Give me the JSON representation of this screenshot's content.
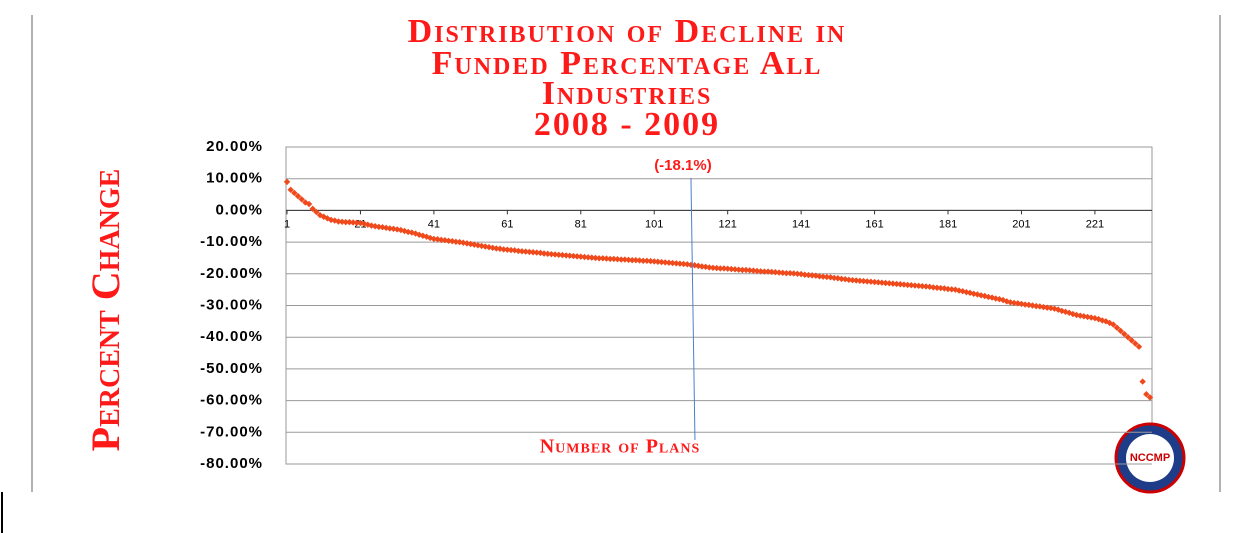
{
  "chart_data": {
    "type": "scatter",
    "title": [
      "Distribution of Decline in",
      "Funded Percentage All",
      "Industries",
      "2008 - 2009"
    ],
    "xlabel": "Number of Plans",
    "ylabel": "Percent Change",
    "annotation": {
      "text": "(-18.1%)",
      "x": 111
    },
    "logo": "NCCMP",
    "xlim": [
      1,
      236
    ],
    "xticks": [
      1,
      21,
      41,
      61,
      81,
      101,
      121,
      141,
      161,
      181,
      201,
      221
    ],
    "ylim": [
      -80,
      20
    ],
    "yticks": [
      {
        "value": 20,
        "label": "20.00%"
      },
      {
        "value": 10,
        "label": "10.00%"
      },
      {
        "value": 0,
        "label": "0.00%"
      },
      {
        "value": -10,
        "label": "-10.00%"
      },
      {
        "value": -20,
        "label": "-20.00%"
      },
      {
        "value": -30,
        "label": "-30.00%"
      },
      {
        "value": -40,
        "label": "-40.00%"
      },
      {
        "value": -50,
        "label": "-50.00%"
      },
      {
        "value": -60,
        "label": "-60.00%"
      },
      {
        "value": -70,
        "label": "-70.00%"
      },
      {
        "value": -80,
        "label": "-80.00%"
      }
    ],
    "grid": true,
    "x": [
      1,
      2,
      3,
      4,
      5,
      6,
      7,
      8,
      9,
      10,
      11,
      12,
      13,
      14,
      15,
      16,
      17,
      18,
      19,
      20,
      21,
      22,
      23,
      24,
      25,
      26,
      27,
      28,
      29,
      30,
      31,
      32,
      33,
      34,
      35,
      36,
      37,
      38,
      39,
      40,
      41,
      42,
      43,
      44,
      45,
      46,
      47,
      48,
      49,
      50,
      51,
      52,
      53,
      54,
      55,
      56,
      57,
      58,
      59,
      60,
      61,
      62,
      63,
      64,
      65,
      66,
      67,
      68,
      69,
      70,
      71,
      72,
      73,
      74,
      75,
      76,
      77,
      78,
      79,
      80,
      81,
      82,
      83,
      84,
      85,
      86,
      87,
      88,
      89,
      90,
      91,
      92,
      93,
      94,
      95,
      96,
      97,
      98,
      99,
      100,
      101,
      102,
      103,
      104,
      105,
      106,
      107,
      108,
      109,
      110,
      111,
      112,
      113,
      114,
      115,
      116,
      117,
      118,
      119,
      120,
      121,
      122,
      123,
      124,
      125,
      126,
      127,
      128,
      129,
      130,
      131,
      132,
      133,
      134,
      135,
      136,
      137,
      138,
      139,
      140,
      141,
      142,
      143,
      144,
      145,
      146,
      147,
      148,
      149,
      150,
      151,
      152,
      153,
      154,
      155,
      156,
      157,
      158,
      159,
      160,
      161,
      162,
      163,
      164,
      165,
      166,
      167,
      168,
      169,
      170,
      171,
      172,
      173,
      174,
      175,
      176,
      177,
      178,
      179,
      180,
      181,
      182,
      183,
      184,
      185,
      186,
      187,
      188,
      189,
      190,
      191,
      192,
      193,
      194,
      195,
      196,
      197,
      198,
      199,
      200,
      201,
      202,
      203,
      204,
      205,
      206,
      207,
      208,
      209,
      210,
      211,
      212,
      213,
      214,
      215,
      216,
      217,
      218,
      219,
      220,
      221,
      222,
      223,
      224,
      225,
      226,
      227,
      228,
      229,
      230,
      231,
      232,
      233,
      234,
      235,
      236
    ],
    "series": [
      {
        "color": "#f04a1c",
        "values": [
          9,
          6.5,
          5.5,
          4.5,
          3.5,
          2.5,
          2,
          0.5,
          -0.5,
          -1.5,
          -2,
          -2.5,
          -3,
          -3.2,
          -3.5,
          -3.6,
          -3.7,
          -3.7,
          -3.8,
          -3.9,
          -4,
          -4.2,
          -4.5,
          -4.8,
          -5,
          -5.2,
          -5.3,
          -5.5,
          -5.7,
          -5.8,
          -6,
          -6.2,
          -6.5,
          -6.8,
          -7,
          -7.3,
          -7.7,
          -8,
          -8.3,
          -8.7,
          -9,
          -9.1,
          -9.3,
          -9.4,
          -9.6,
          -9.7,
          -9.9,
          -10,
          -10.2,
          -10.4,
          -10.6,
          -10.8,
          -11,
          -11.2,
          -11.4,
          -11.6,
          -11.8,
          -12,
          -12.1,
          -12.3,
          -12.4,
          -12.5,
          -12.6,
          -12.8,
          -12.9,
          -13,
          -13.1,
          -13.2,
          -13.3,
          -13.4,
          -13.6,
          -13.7,
          -13.8,
          -13.9,
          -14,
          -14.1,
          -14.2,
          -14.3,
          -14.4,
          -14.5,
          -14.6,
          -14.7,
          -14.8,
          -14.9,
          -15,
          -15.1,
          -15.1,
          -15.2,
          -15.3,
          -15.3,
          -15.4,
          -15.5,
          -15.5,
          -15.6,
          -15.7,
          -15.7,
          -15.8,
          -15.9,
          -15.9,
          -16,
          -16.1,
          -16.2,
          -16.3,
          -16.4,
          -16.5,
          -16.6,
          -16.7,
          -16.8,
          -16.9,
          -17,
          -17.2,
          -17.3,
          -17.5,
          -17.7,
          -17.8,
          -18,
          -18.1,
          -18.2,
          -18.3,
          -18.3,
          -18.4,
          -18.5,
          -18.6,
          -18.7,
          -18.8,
          -18.8,
          -18.9,
          -19,
          -19.1,
          -19.2,
          -19.3,
          -19.3,
          -19.4,
          -19.5,
          -19.6,
          -19.7,
          -19.8,
          -19.8,
          -19.9,
          -20,
          -20.1,
          -20.3,
          -20.4,
          -20.5,
          -20.6,
          -20.8,
          -20.9,
          -21,
          -21.1,
          -21.3,
          -21.4,
          -21.6,
          -21.7,
          -21.9,
          -22,
          -22.1,
          -22.2,
          -22.3,
          -22.4,
          -22.5,
          -22.6,
          -22.7,
          -22.8,
          -22.9,
          -23,
          -23.1,
          -23.2,
          -23.3,
          -23.4,
          -23.5,
          -23.6,
          -23.7,
          -23.8,
          -23.9,
          -24,
          -24.1,
          -24.3,
          -24.4,
          -24.5,
          -24.6,
          -24.8,
          -24.9,
          -25,
          -25.3,
          -25.5,
          -25.8,
          -26,
          -26.3,
          -26.5,
          -26.8,
          -27,
          -27.3,
          -27.5,
          -27.8,
          -28,
          -28.3,
          -28.7,
          -29,
          -29.2,
          -29.3,
          -29.5,
          -29.7,
          -29.8,
          -30,
          -30.2,
          -30.3,
          -30.5,
          -30.7,
          -30.8,
          -31,
          -31.3,
          -31.7,
          -32,
          -32.3,
          -32.7,
          -33,
          -33.2,
          -33.4,
          -33.6,
          -33.8,
          -34,
          -34.3,
          -34.7,
          -35,
          -35.5,
          -36,
          -37,
          -38,
          -39,
          -40,
          -41,
          -42,
          -43,
          -54,
          -58,
          -59
        ]
      }
    ]
  }
}
